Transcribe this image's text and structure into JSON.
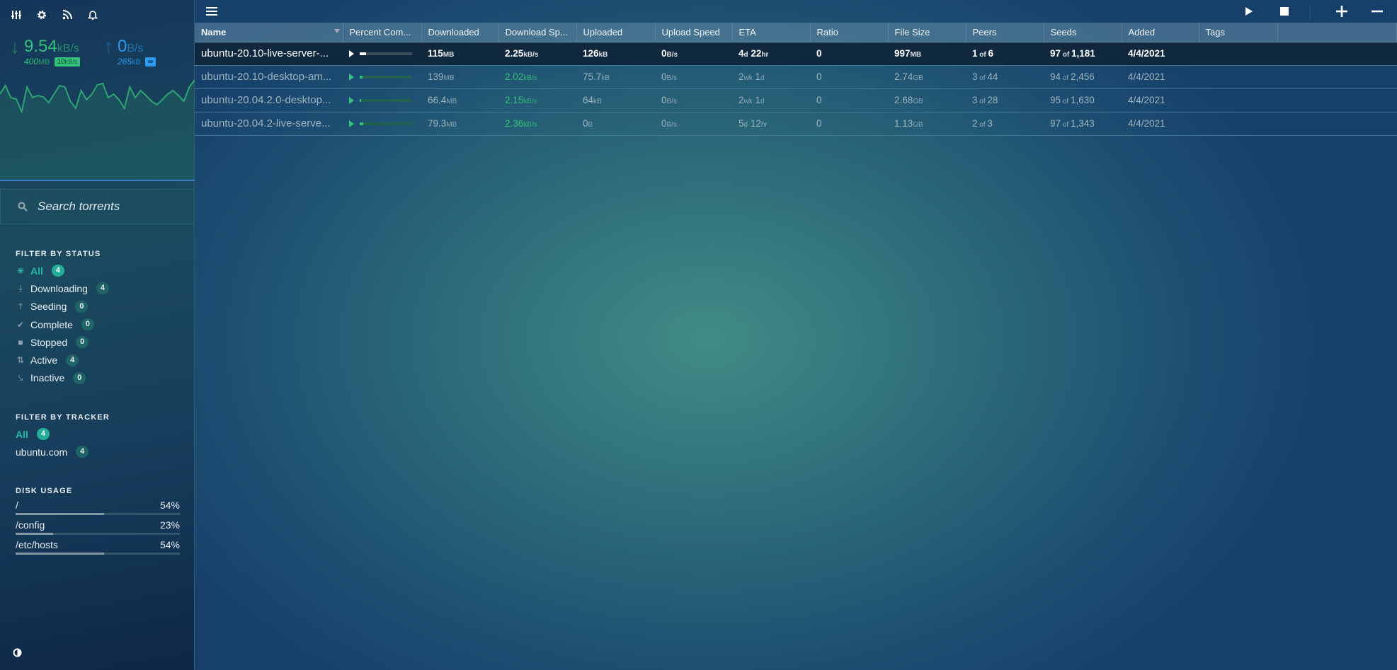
{
  "colors": {
    "accent": "#27b8a0",
    "download": "#33c27b",
    "upload": "#2e9bf0"
  },
  "sidebar": {
    "top_icons": [
      "sliders-icon",
      "gear-icon",
      "rss-icon",
      "bell-icon"
    ],
    "download": {
      "speed": "9.54",
      "unit": "kB/s",
      "total": "400",
      "total_unit": "MB",
      "limit": "10",
      "limit_unit": "kB/s"
    },
    "upload": {
      "speed": "0",
      "unit": "B/s",
      "total": "265",
      "total_unit": "kB",
      "limit": "∞"
    },
    "search_placeholder": "Search torrents",
    "status": {
      "heading": "FILTER BY STATUS",
      "items": [
        {
          "label": "All",
          "count": "4",
          "icon": "asterisk-icon",
          "active": true
        },
        {
          "label": "Downloading",
          "count": "4",
          "icon": "download-icon"
        },
        {
          "label": "Seeding",
          "count": "0",
          "icon": "upload-icon"
        },
        {
          "label": "Complete",
          "count": "0",
          "icon": "check-icon"
        },
        {
          "label": "Stopped",
          "count": "0",
          "icon": "stop-icon"
        },
        {
          "label": "Active",
          "count": "4",
          "icon": "arrows-icon"
        },
        {
          "label": "Inactive",
          "count": "0",
          "icon": "inactive-icon"
        }
      ]
    },
    "tracker": {
      "heading": "FILTER BY TRACKER",
      "items": [
        {
          "label": "All",
          "count": "4",
          "active": true
        },
        {
          "label": "ubuntu.com",
          "count": "4"
        }
      ]
    },
    "disk": {
      "heading": "DISK USAGE",
      "items": [
        {
          "path": "/",
          "pct": "54%",
          "value": 54
        },
        {
          "path": "/config",
          "pct": "23%",
          "value": 23
        },
        {
          "path": "/etc/hosts",
          "pct": "54%",
          "value": 54
        }
      ]
    }
  },
  "table": {
    "columns": [
      "Name",
      "Percent Com...",
      "Downloaded",
      "Download Sp...",
      "Uploaded",
      "Upload Speed",
      "ETA",
      "Ratio",
      "File Size",
      "Peers",
      "Seeds",
      "Added",
      "Tags",
      ""
    ],
    "rows": [
      {
        "name": "ubuntu-20.10-live-server-...",
        "progress": 11.5,
        "dl": "115",
        "dl_u": "MB",
        "dls": "2.25",
        "dls_u": "kB/s",
        "ul": "126",
        "ul_u": "kB",
        "uls": "0",
        "uls_u": "B/s",
        "eta1": "4",
        "eta1_u": "d",
        "eta2": " 22",
        "eta2_u": "hr",
        "ratio": "0",
        "size": "997",
        "size_u": "MB",
        "peers": "1",
        "peers_of": " of ",
        "peers_t": "6",
        "seeds": "97",
        "seeds_of": " of ",
        "seeds_t": "1,181",
        "added": "4/4/2021",
        "selected": true
      },
      {
        "name": "ubuntu-20.10-desktop-am...",
        "progress": 5,
        "dl": "139",
        "dl_u": "MB",
        "dls": "2.02",
        "dls_u": "kB/s",
        "ul": "75.7",
        "ul_u": "kB",
        "uls": "0",
        "uls_u": "B/s",
        "eta1": "2",
        "eta1_u": "wk",
        "eta2": " 1",
        "eta2_u": "d",
        "ratio": "0",
        "size": "2.74",
        "size_u": "GB",
        "peers": "3",
        "peers_of": " of ",
        "peers_t": "44",
        "seeds": "94",
        "seeds_of": " of ",
        "seeds_t": "2,456",
        "added": "4/4/2021"
      },
      {
        "name": "ubuntu-20.04.2.0-desktop...",
        "progress": 2.5,
        "dl": "66.4",
        "dl_u": "MB",
        "dls": "2.15",
        "dls_u": "kB/s",
        "ul": "64",
        "ul_u": "kB",
        "uls": "0",
        "uls_u": "B/s",
        "eta1": "2",
        "eta1_u": "wk",
        "eta2": " 1",
        "eta2_u": "d",
        "ratio": "0",
        "size": "2.68",
        "size_u": "GB",
        "peers": "3",
        "peers_of": " of ",
        "peers_t": "28",
        "seeds": "95",
        "seeds_of": " of ",
        "seeds_t": "1,630",
        "added": "4/4/2021"
      },
      {
        "name": "ubuntu-20.04.2-live-serve...",
        "progress": 7,
        "dl": "79.3",
        "dl_u": "MB",
        "dls": "2.36",
        "dls_u": "kB/s",
        "ul": "0",
        "ul_u": "B",
        "uls": "0",
        "uls_u": "B/s",
        "eta1": "5",
        "eta1_u": "d",
        "eta2": " 12",
        "eta2_u": "hr",
        "ratio": "0",
        "size": "1.13",
        "size_u": "GB",
        "peers": "2",
        "peers_of": " of ",
        "peers_t": "3",
        "seeds": "97",
        "seeds_of": " of ",
        "seeds_t": "1,343",
        "added": "4/4/2021"
      }
    ]
  },
  "toolbar": {
    "icons": [
      "menu-icon",
      "start-icon",
      "stop-icon",
      "add-icon",
      "remove-icon"
    ]
  }
}
